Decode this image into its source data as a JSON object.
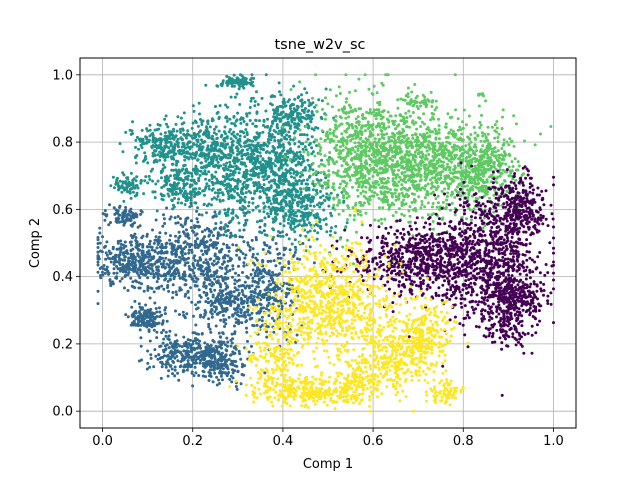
{
  "chart_data": {
    "type": "scatter",
    "title": "tsne_w2v_sc",
    "xlabel": "Comp  1",
    "ylabel": "Comp  2",
    "xlim": [
      -0.05,
      1.05
    ],
    "ylim": [
      -0.05,
      1.05
    ],
    "xticks": [
      0.0,
      0.2,
      0.4,
      0.6,
      0.8,
      1.0
    ],
    "yticks": [
      0.0,
      0.2,
      0.4,
      0.6,
      0.8,
      1.0
    ],
    "xtick_labels": [
      "0.0",
      "0.2",
      "0.4",
      "0.6",
      "0.8",
      "1.0"
    ],
    "ytick_labels": [
      "0.0",
      "0.2",
      "0.4",
      "0.6",
      "0.8",
      "1.0"
    ],
    "grid": true,
    "legend": "none",
    "clusters": [
      {
        "color": "#31688e",
        "region": "left / lower-left",
        "blobs": [
          {
            "center": [
              0.08,
              0.44
            ],
            "spread": [
              0.05,
              0.04
            ],
            "count": 420
          },
          {
            "center": [
              0.22,
              0.46
            ],
            "spread": [
              0.06,
              0.07
            ],
            "count": 480
          },
          {
            "center": [
              0.1,
              0.28
            ],
            "spread": [
              0.02,
              0.02
            ],
            "count": 140
          },
          {
            "center": [
              0.18,
              0.17
            ],
            "spread": [
              0.04,
              0.03
            ],
            "count": 260
          },
          {
            "center": [
              0.26,
              0.15
            ],
            "spread": [
              0.03,
              0.04
            ],
            "count": 200
          },
          {
            "center": [
              0.28,
              0.32
            ],
            "spread": [
              0.05,
              0.05
            ],
            "count": 260
          },
          {
            "center": [
              0.37,
              0.37
            ],
            "spread": [
              0.03,
              0.07
            ],
            "count": 260
          },
          {
            "center": [
              0.05,
              0.58
            ],
            "spread": [
              0.02,
              0.015
            ],
            "count": 80
          }
        ]
      },
      {
        "color": "#21918c",
        "region": "upper-left",
        "blobs": [
          {
            "center": [
              0.14,
              0.79
            ],
            "spread": [
              0.04,
              0.03
            ],
            "count": 240
          },
          {
            "center": [
              0.06,
              0.67
            ],
            "spread": [
              0.02,
              0.015
            ],
            "count": 80
          },
          {
            "center": [
              0.17,
              0.67
            ],
            "spread": [
              0.03,
              0.03
            ],
            "count": 180
          },
          {
            "center": [
              0.22,
              0.78
            ],
            "spread": [
              0.03,
              0.05
            ],
            "count": 220
          },
          {
            "center": [
              0.3,
              0.72
            ],
            "spread": [
              0.04,
              0.09
            ],
            "count": 520
          },
          {
            "center": [
              0.4,
              0.74
            ],
            "spread": [
              0.04,
              0.09
            ],
            "count": 520
          },
          {
            "center": [
              0.44,
              0.6
            ],
            "spread": [
              0.04,
              0.05
            ],
            "count": 260
          },
          {
            "center": [
              0.3,
              0.98
            ],
            "spread": [
              0.02,
              0.008
            ],
            "count": 90
          },
          {
            "center": [
              0.42,
              0.88
            ],
            "spread": [
              0.03,
              0.03
            ],
            "count": 140
          }
        ]
      },
      {
        "color": "#5ec962",
        "region": "upper-right",
        "blobs": [
          {
            "center": [
              0.58,
              0.76
            ],
            "spread": [
              0.06,
              0.09
            ],
            "count": 800
          },
          {
            "center": [
              0.72,
              0.74
            ],
            "spread": [
              0.07,
              0.08
            ],
            "count": 800
          },
          {
            "center": [
              0.84,
              0.72
            ],
            "spread": [
              0.04,
              0.06
            ],
            "count": 400
          },
          {
            "center": [
              0.7,
              0.92
            ],
            "spread": [
              0.02,
              0.008
            ],
            "count": 40
          },
          {
            "center": [
              0.84,
              0.94
            ],
            "spread": [
              0.004,
              0.004
            ],
            "count": 8
          }
        ]
      },
      {
        "color": "#440154",
        "region": "right",
        "blobs": [
          {
            "center": [
              0.7,
              0.45
            ],
            "spread": [
              0.07,
              0.05
            ],
            "count": 600
          },
          {
            "center": [
              0.85,
              0.45
            ],
            "spread": [
              0.06,
              0.09
            ],
            "count": 800
          },
          {
            "center": [
              0.92,
              0.34
            ],
            "spread": [
              0.03,
              0.03
            ],
            "count": 200
          },
          {
            "center": [
              0.92,
              0.6
            ],
            "spread": [
              0.03,
              0.05
            ],
            "count": 300
          },
          {
            "center": [
              0.9,
              0.25
            ],
            "spread": [
              0.03,
              0.03
            ],
            "count": 120
          }
        ]
      },
      {
        "color": "#fde725",
        "region": "bottom-center",
        "blobs": [
          {
            "center": [
              0.5,
              0.33
            ],
            "spread": [
              0.07,
              0.08
            ],
            "count": 800
          },
          {
            "center": [
              0.44,
              0.06
            ],
            "spread": [
              0.05,
              0.02
            ],
            "count": 260
          },
          {
            "center": [
              0.56,
              0.08
            ],
            "spread": [
              0.03,
              0.03
            ],
            "count": 180
          },
          {
            "center": [
              0.65,
              0.16
            ],
            "spread": [
              0.04,
              0.05
            ],
            "count": 300
          },
          {
            "center": [
              0.72,
              0.24
            ],
            "spread": [
              0.03,
              0.05
            ],
            "count": 220
          },
          {
            "center": [
              0.38,
              0.16
            ],
            "spread": [
              0.03,
              0.05
            ],
            "count": 160
          },
          {
            "center": [
              0.76,
              0.06
            ],
            "spread": [
              0.02,
              0.02
            ],
            "count": 70
          }
        ]
      }
    ]
  }
}
